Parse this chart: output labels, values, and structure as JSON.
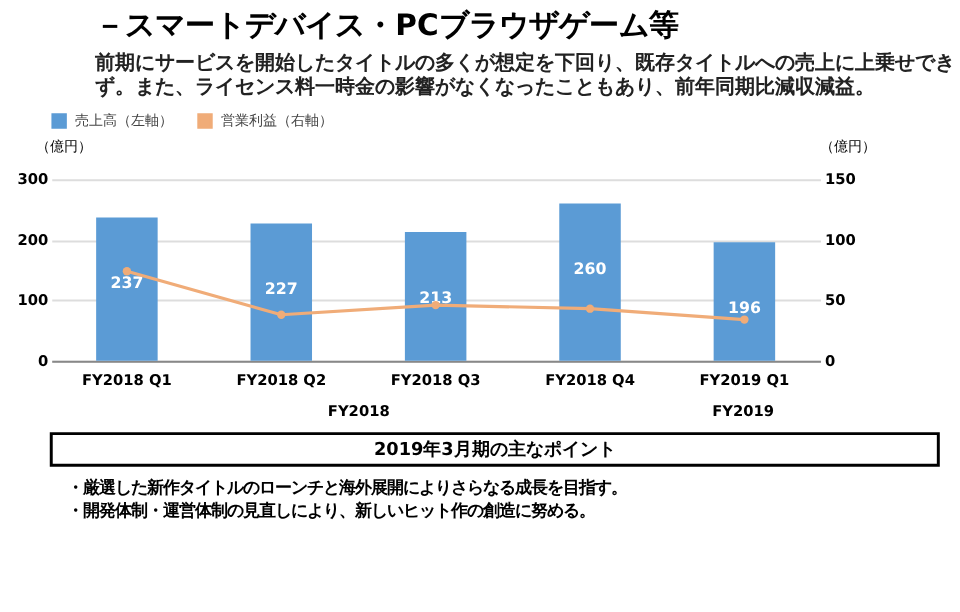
{
  "chart_data": {
    "type": "bar",
    "title": "－スマートデバイス・PCブラウザゲーム等",
    "subtitle": "前期にサービスを開始したタイトルの多くが想定を下回り、既存タイトルへの売上に上乗せできず。また、ライセンス料一時金の影響がなくなったこともあり、前年同期比減収減益。",
    "categories": [
      "FY2018  Q1",
      "FY2018  Q2",
      "FY2018  Q3",
      "FY2018  Q4",
      "FY2019  Q1"
    ],
    "series": [
      {
        "name": "売上高（左軸）",
        "color": "#5b9bd5",
        "values": [
          237,
          227,
          213,
          260,
          196
        ],
        "value_labels": [
          "237",
          "227",
          "213",
          "260",
          "196"
        ]
      },
      {
        "name": "営業利益（右軸）",
        "type": "line",
        "axis": "y2",
        "color": "#f0ac78",
        "values": [
          74,
          38,
          46,
          43,
          34
        ],
        "marker": "circle"
      }
    ],
    "ylabel": "（億円）",
    "y2label": "（億円）",
    "ylim": [
      0,
      300
    ],
    "yticks": [
      0,
      100,
      200,
      300
    ],
    "y2lim": [
      0,
      150
    ],
    "y2ticks": [
      0,
      50,
      100,
      150
    ],
    "grid": "y",
    "legend": "top left",
    "annotations": [
      "FY2018",
      "FY2019",
      "2019年3月期の主なポイント",
      "・厳選した新作タイトルのローンチと海外展開によりさらなる成長を目指す。",
      "・開発体制・運営体制の見直しにより、新しいヒット作の創造に努める。"
    ]
  }
}
